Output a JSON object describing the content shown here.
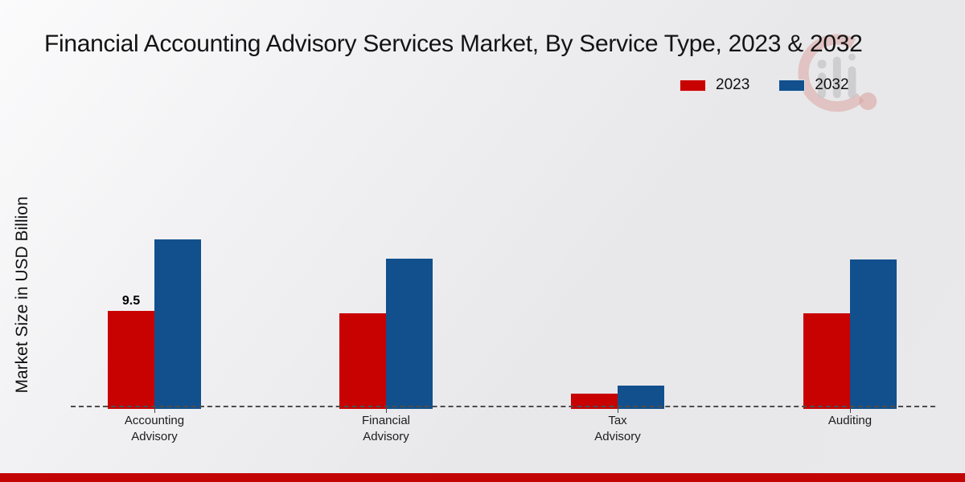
{
  "chart_data": {
    "type": "bar",
    "title": "Financial Accounting Advisory Services Market, By Service Type, 2023 & 2032",
    "ylabel": "Market Size in USD Billion",
    "xlabel": "",
    "categories": [
      "Accounting Advisory",
      "Financial Advisory",
      "Tax Advisory",
      "Auditing"
    ],
    "series": [
      {
        "name": "2023",
        "color": "#c80101",
        "values": [
          9.5,
          9.3,
          1.5,
          9.3
        ]
      },
      {
        "name": "2032",
        "color": "#11508d",
        "values": [
          16.4,
          14.6,
          2.3,
          14.5
        ]
      }
    ],
    "bar_labels": [
      {
        "series_index": 0,
        "category_index": 0,
        "text": "9.5"
      }
    ],
    "ylim": [
      0,
      18
    ],
    "grid": false,
    "legend_position": "top-right",
    "baseline_style": "dashed"
  },
  "colors": {
    "accent_strip": "#c20404",
    "baseline": "#4d4d4d",
    "watermark_red": "#c0392b",
    "watermark_gray": "#8f8f8f"
  },
  "watermark_name": "market-research-future-logo"
}
